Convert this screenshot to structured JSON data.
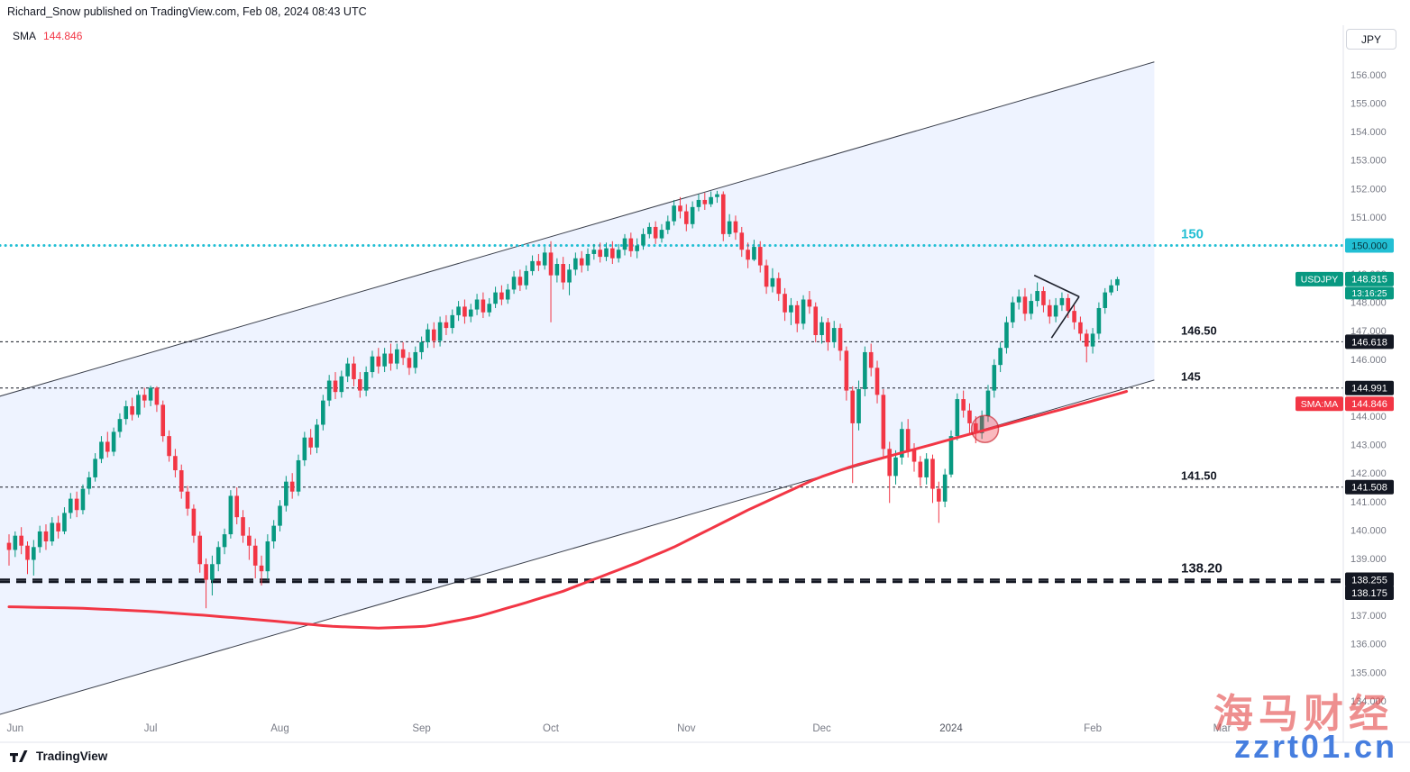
{
  "header": {
    "attribution": "Richard_Snow published on TradingView.com, Feb 08, 2024 08:43 UTC"
  },
  "legend": {
    "indicator": "SMA",
    "value": "144.846"
  },
  "axis": {
    "currency": "JPY",
    "tick_min": 134,
    "tick_max": 156,
    "tick_step": 1,
    "decimals": 3,
    "tick_color": "#787b86"
  },
  "footer": {
    "brand": "TradingView"
  },
  "watermark": {
    "line1": "海马财经",
    "line2": "zzrt01.cn"
  },
  "chart_data": {
    "type": "candlestick",
    "symbol": "USDJPY",
    "last_price": "148.815",
    "countdown": "13:16:25",
    "up_color": "#089981",
    "down_color": "#f23645",
    "sma_color": "#f23645",
    "ylim": [
      132.54,
      157.74
    ],
    "x_labels": [
      {
        "label": "Jun",
        "idx": 1
      },
      {
        "label": "Jul",
        "idx": 23
      },
      {
        "label": "Aug",
        "idx": 44
      },
      {
        "label": "Sep",
        "idx": 67
      },
      {
        "label": "Oct",
        "idx": 88
      },
      {
        "label": "Nov",
        "idx": 110
      },
      {
        "label": "Dec",
        "idx": 132
      },
      {
        "label": "2024",
        "idx": 153,
        "emphasis": true
      },
      {
        "label": "Feb",
        "idx": 176
      },
      {
        "label": "Mar",
        "idx": 197
      }
    ],
    "levels": [
      {
        "price": 150.0,
        "text": "150",
        "axis_label": "150.000",
        "color": "#22bfd4",
        "style": "dotted",
        "text_color": "#22bfd4",
        "label_bg": "#22bfd4",
        "label_fg": "#06323a",
        "text_size": 15
      },
      {
        "price": 146.618,
        "text": "146.50",
        "axis_label": "146.618",
        "color": "#131722",
        "style": "dash-fine",
        "text_color": "#131722",
        "label_bg": "#131722",
        "label_fg": "#ffffff",
        "text_size": 13
      },
      {
        "price": 144.991,
        "text": "145",
        "axis_label": "144.991",
        "color": "#131722",
        "style": "dash-fine",
        "text_color": "#131722",
        "label_bg": "#131722",
        "label_fg": "#ffffff",
        "text_size": 13
      },
      {
        "price": 141.508,
        "text": "141.50",
        "axis_label": "141.508",
        "color": "#131722",
        "style": "dash-fine",
        "text_color": "#131722",
        "label_bg": "#131722",
        "label_fg": "#ffffff",
        "text_size": 13
      },
      {
        "price": 138.255,
        "text": "138.20",
        "axis_label": "138.255",
        "color": "#131722",
        "style": "dash-heavy",
        "text_color": "#131722",
        "label_bg": "#131722",
        "label_fg": "#ffffff",
        "text_size": 15
      },
      {
        "price": 138.175,
        "text": "",
        "axis_label": "138.175",
        "color": "#131722",
        "style": "dash-heavy",
        "text_color": "#131722",
        "label_bg": "#131722",
        "label_fg": "#ffffff",
        "text_size": 13,
        "label_dy": 12
      }
    ],
    "series_labels": [
      {
        "name": "USDJPY",
        "value": "148.815",
        "price": 148.815,
        "bg": "#089981",
        "fg": "#ffffff",
        "sub": "13:16:25"
      },
      {
        "name": "SMA:MA",
        "value": "144.846",
        "price": 144.846,
        "bg": "#f23645",
        "fg": "#ffffff",
        "dy": 13
      }
    ],
    "channel": {
      "upper": [
        [
          -1.5,
          144.7
        ],
        [
          186,
          156.45
        ]
      ],
      "lower": [
        [
          -1.5,
          133.52
        ],
        [
          186,
          145.27
        ]
      ],
      "fill": "rgba(41,98,255,0.08)",
      "line_color": "#3a3f4b"
    },
    "circle_marker": {
      "idx": 158.5,
      "price": 143.55,
      "radius": 15
    },
    "pennant": [
      [
        [
          166.5,
          148.95
        ],
        [
          173.8,
          148.2
        ]
      ],
      [
        [
          169.3,
          146.75
        ],
        [
          173.8,
          148.2
        ]
      ]
    ],
    "sma_points": [
      [
        0,
        137.3
      ],
      [
        12,
        137.25
      ],
      [
        22,
        137.15
      ],
      [
        32,
        137.0
      ],
      [
        43,
        136.8
      ],
      [
        52,
        136.62
      ],
      [
        60,
        136.55
      ],
      [
        68,
        136.62
      ],
      [
        76,
        136.95
      ],
      [
        84,
        137.45
      ],
      [
        90,
        137.85
      ],
      [
        96,
        138.35
      ],
      [
        102,
        138.85
      ],
      [
        108,
        139.4
      ],
      [
        114,
        140.05
      ],
      [
        120,
        140.7
      ],
      [
        126,
        141.3
      ],
      [
        131,
        141.8
      ],
      [
        137,
        142.25
      ],
      [
        143,
        142.6
      ],
      [
        149,
        142.95
      ],
      [
        154,
        143.25
      ],
      [
        160,
        143.6
      ],
      [
        166,
        143.95
      ],
      [
        172,
        144.3
      ],
      [
        177,
        144.6
      ],
      [
        181.5,
        144.87
      ]
    ],
    "candles": [
      [
        139.55,
        139.85,
        138.75,
        139.3
      ],
      [
        139.3,
        139.95,
        139.05,
        139.8
      ],
      [
        139.8,
        140.1,
        139.15,
        139.45
      ],
      [
        139.45,
        139.6,
        138.45,
        138.95
      ],
      [
        138.95,
        139.65,
        138.4,
        139.4
      ],
      [
        139.4,
        140.15,
        139.2,
        139.95
      ],
      [
        139.95,
        140.2,
        139.3,
        139.6
      ],
      [
        139.6,
        140.45,
        139.45,
        140.25
      ],
      [
        140.25,
        140.5,
        139.7,
        139.95
      ],
      [
        139.95,
        140.8,
        139.85,
        140.6
      ],
      [
        140.6,
        141.3,
        140.4,
        141.1
      ],
      [
        141.1,
        141.35,
        140.45,
        140.7
      ],
      [
        140.7,
        141.6,
        140.55,
        141.45
      ],
      [
        141.45,
        142.05,
        141.25,
        141.85
      ],
      [
        141.85,
        142.7,
        141.7,
        142.5
      ],
      [
        142.5,
        143.3,
        142.35,
        143.1
      ],
      [
        143.1,
        143.45,
        142.55,
        142.75
      ],
      [
        142.75,
        143.6,
        142.6,
        143.45
      ],
      [
        143.45,
        144.1,
        143.25,
        143.9
      ],
      [
        143.9,
        144.55,
        143.7,
        144.35
      ],
      [
        144.35,
        144.65,
        143.85,
        144.05
      ],
      [
        144.05,
        144.9,
        143.95,
        144.75
      ],
      [
        144.75,
        145.0,
        144.3,
        144.55
      ],
      [
        144.55,
        145.07,
        144.35,
        145.0
      ],
      [
        145.0,
        145.05,
        144.15,
        144.4
      ],
      [
        144.4,
        144.55,
        143.1,
        143.3
      ],
      [
        143.3,
        143.5,
        142.4,
        142.6
      ],
      [
        142.6,
        142.85,
        141.85,
        142.1
      ],
      [
        142.1,
        142.3,
        141.1,
        141.35
      ],
      [
        141.35,
        141.55,
        140.5,
        140.75
      ],
      [
        140.75,
        140.9,
        139.55,
        139.8
      ],
      [
        139.8,
        139.95,
        138.5,
        138.8
      ],
      [
        138.8,
        139.0,
        137.25,
        138.25
      ],
      [
        138.25,
        139.1,
        137.7,
        138.8
      ],
      [
        138.8,
        139.6,
        138.55,
        139.4
      ],
      [
        139.4,
        140.05,
        139.15,
        139.85
      ],
      [
        139.85,
        141.4,
        139.7,
        141.2
      ],
      [
        141.2,
        141.5,
        140.2,
        140.45
      ],
      [
        140.45,
        140.7,
        139.55,
        139.8
      ],
      [
        139.8,
        140.1,
        138.95,
        139.45
      ],
      [
        139.45,
        139.7,
        138.3,
        138.75
      ],
      [
        138.75,
        139.1,
        138.05,
        138.55
      ],
      [
        138.55,
        139.85,
        138.25,
        139.6
      ],
      [
        139.6,
        140.35,
        139.35,
        140.15
      ],
      [
        140.15,
        141.05,
        139.95,
        140.85
      ],
      [
        140.85,
        141.9,
        140.65,
        141.7
      ],
      [
        141.7,
        142.0,
        141.1,
        141.35
      ],
      [
        141.35,
        142.65,
        141.2,
        142.45
      ],
      [
        142.45,
        143.45,
        142.25,
        143.25
      ],
      [
        143.25,
        143.55,
        142.65,
        142.9
      ],
      [
        142.9,
        143.9,
        142.7,
        143.7
      ],
      [
        143.7,
        144.75,
        143.5,
        144.55
      ],
      [
        144.55,
        145.45,
        144.35,
        145.25
      ],
      [
        145.25,
        145.55,
        144.6,
        144.85
      ],
      [
        144.85,
        145.6,
        144.65,
        145.4
      ],
      [
        145.4,
        146.05,
        145.2,
        145.85
      ],
      [
        145.85,
        146.1,
        145.05,
        145.3
      ],
      [
        145.3,
        145.55,
        144.65,
        144.9
      ],
      [
        144.9,
        145.75,
        144.7,
        145.55
      ],
      [
        145.55,
        146.3,
        145.35,
        146.1
      ],
      [
        146.1,
        146.4,
        145.5,
        145.75
      ],
      [
        145.75,
        146.4,
        145.55,
        146.2
      ],
      [
        146.2,
        146.55,
        145.6,
        145.85
      ],
      [
        145.85,
        146.55,
        145.65,
        146.35
      ],
      [
        146.35,
        146.6,
        145.8,
        146.05
      ],
      [
        146.05,
        146.25,
        145.45,
        145.7
      ],
      [
        145.7,
        146.45,
        145.5,
        146.25
      ],
      [
        146.25,
        146.8,
        146.0,
        146.6
      ],
      [
        146.6,
        147.25,
        146.4,
        147.05
      ],
      [
        147.05,
        147.3,
        146.4,
        146.65
      ],
      [
        146.65,
        147.5,
        146.45,
        147.3
      ],
      [
        147.3,
        147.55,
        146.85,
        147.1
      ],
      [
        147.1,
        147.75,
        146.9,
        147.55
      ],
      [
        147.55,
        148.05,
        147.35,
        147.85
      ],
      [
        147.85,
        148.1,
        147.25,
        147.5
      ],
      [
        147.5,
        147.95,
        147.3,
        147.75
      ],
      [
        147.75,
        148.3,
        147.55,
        148.1
      ],
      [
        148.1,
        148.35,
        147.45,
        147.65
      ],
      [
        147.65,
        148.15,
        147.5,
        147.95
      ],
      [
        147.95,
        148.55,
        147.8,
        148.35
      ],
      [
        148.35,
        148.6,
        147.9,
        148.1
      ],
      [
        148.1,
        148.65,
        147.95,
        148.45
      ],
      [
        148.45,
        149.1,
        148.3,
        148.9
      ],
      [
        148.9,
        149.15,
        148.4,
        148.6
      ],
      [
        148.6,
        149.3,
        148.45,
        149.1
      ],
      [
        149.1,
        149.65,
        148.95,
        149.45
      ],
      [
        149.45,
        149.7,
        149.1,
        149.3
      ],
      [
        149.3,
        149.95,
        149.15,
        149.75
      ],
      [
        149.75,
        150.15,
        147.3,
        148.95
      ],
      [
        148.95,
        149.55,
        148.7,
        149.35
      ],
      [
        149.35,
        149.6,
        148.45,
        148.7
      ],
      [
        148.7,
        149.35,
        148.25,
        149.15
      ],
      [
        149.15,
        149.75,
        148.95,
        149.55
      ],
      [
        149.55,
        149.8,
        149.05,
        149.3
      ],
      [
        149.3,
        149.9,
        149.1,
        149.7
      ],
      [
        149.7,
        150.05,
        149.5,
        149.85
      ],
      [
        149.85,
        150.1,
        149.4,
        149.6
      ],
      [
        149.6,
        150.1,
        149.45,
        149.9
      ],
      [
        149.9,
        150.15,
        149.35,
        149.55
      ],
      [
        149.55,
        150.05,
        149.4,
        149.85
      ],
      [
        149.85,
        150.4,
        149.65,
        150.25
      ],
      [
        150.25,
        150.45,
        149.6,
        149.8
      ],
      [
        149.8,
        150.25,
        149.55,
        150.0
      ],
      [
        150.0,
        150.6,
        149.85,
        150.4
      ],
      [
        150.4,
        150.8,
        150.25,
        150.65
      ],
      [
        150.65,
        150.85,
        150.05,
        150.25
      ],
      [
        150.25,
        150.75,
        150.1,
        150.55
      ],
      [
        150.55,
        151.05,
        150.4,
        150.85
      ],
      [
        150.85,
        151.6,
        150.7,
        151.4
      ],
      [
        151.4,
        151.7,
        150.95,
        151.2
      ],
      [
        151.2,
        151.45,
        150.5,
        150.75
      ],
      [
        150.75,
        151.55,
        150.6,
        151.35
      ],
      [
        151.35,
        151.8,
        151.2,
        151.6
      ],
      [
        151.6,
        151.85,
        151.25,
        151.45
      ],
      [
        151.45,
        151.9,
        151.35,
        151.7
      ],
      [
        151.7,
        151.92,
        151.5,
        151.8
      ],
      [
        151.8,
        151.9,
        150.15,
        150.4
      ],
      [
        150.4,
        151.1,
        150.3,
        150.85
      ],
      [
        150.85,
        151.05,
        150.2,
        150.45
      ],
      [
        150.45,
        150.65,
        149.6,
        149.85
      ],
      [
        149.85,
        150.1,
        149.2,
        149.5
      ],
      [
        149.5,
        150.2,
        149.45,
        149.95
      ],
      [
        149.95,
        150.15,
        149.05,
        149.3
      ],
      [
        149.3,
        149.5,
        148.3,
        148.55
      ],
      [
        148.55,
        149.2,
        148.35,
        148.85
      ],
      [
        148.85,
        149.05,
        148.05,
        148.3
      ],
      [
        148.3,
        148.5,
        147.35,
        147.65
      ],
      [
        147.65,
        148.15,
        147.2,
        147.9
      ],
      [
        147.9,
        148.05,
        146.95,
        147.25
      ],
      [
        147.25,
        148.25,
        147.05,
        148.1
      ],
      [
        148.1,
        148.4,
        147.6,
        147.85
      ],
      [
        147.85,
        148.0,
        146.6,
        146.85
      ],
      [
        146.85,
        147.5,
        146.55,
        147.3
      ],
      [
        147.3,
        147.45,
        146.3,
        146.6
      ],
      [
        146.6,
        147.35,
        146.4,
        147.1
      ],
      [
        147.1,
        147.25,
        145.95,
        146.3
      ],
      [
        146.3,
        146.45,
        144.55,
        144.9
      ],
      [
        144.9,
        145.05,
        141.65,
        143.75
      ],
      [
        143.75,
        145.25,
        143.5,
        144.95
      ],
      [
        144.95,
        146.45,
        144.7,
        146.25
      ],
      [
        146.25,
        146.55,
        145.4,
        145.7
      ],
      [
        145.7,
        145.95,
        144.45,
        144.75
      ],
      [
        144.75,
        144.95,
        142.5,
        142.85
      ],
      [
        142.85,
        143.1,
        140.95,
        141.9
      ],
      [
        141.9,
        142.8,
        141.6,
        142.55
      ],
      [
        142.55,
        143.8,
        142.3,
        143.55
      ],
      [
        143.55,
        143.9,
        142.55,
        142.8
      ],
      [
        142.8,
        143.05,
        142.05,
        142.4
      ],
      [
        142.4,
        142.6,
        141.55,
        141.85
      ],
      [
        141.85,
        142.7,
        141.6,
        142.5
      ],
      [
        142.5,
        142.65,
        140.95,
        141.45
      ],
      [
        141.45,
        141.7,
        140.25,
        141.0
      ],
      [
        141.0,
        142.15,
        140.8,
        141.95
      ],
      [
        141.95,
        143.5,
        141.85,
        143.3
      ],
      [
        143.3,
        144.8,
        143.15,
        144.6
      ],
      [
        144.6,
        144.9,
        143.95,
        144.2
      ],
      [
        144.2,
        144.45,
        143.4,
        143.75
      ],
      [
        143.75,
        144.0,
        143.05,
        143.4
      ],
      [
        143.4,
        144.2,
        143.2,
        144.0
      ],
      [
        144.0,
        145.1,
        143.8,
        144.9
      ],
      [
        144.9,
        146.0,
        144.65,
        145.8
      ],
      [
        145.8,
        146.6,
        145.55,
        146.4
      ],
      [
        146.4,
        147.5,
        146.2,
        147.3
      ],
      [
        147.3,
        148.2,
        147.1,
        148.0
      ],
      [
        148.0,
        148.45,
        147.75,
        148.2
      ],
      [
        148.2,
        148.5,
        147.35,
        147.6
      ],
      [
        147.6,
        148.3,
        147.4,
        148.05
      ],
      [
        148.05,
        148.7,
        147.85,
        148.4
      ],
      [
        148.4,
        148.55,
        147.65,
        147.9
      ],
      [
        147.9,
        148.1,
        147.25,
        147.5
      ],
      [
        147.5,
        148.15,
        147.3,
        147.9
      ],
      [
        147.9,
        148.35,
        147.7,
        148.15
      ],
      [
        148.15,
        148.3,
        147.45,
        147.7
      ],
      [
        147.7,
        147.9,
        147.05,
        147.3
      ],
      [
        147.3,
        147.5,
        146.65,
        146.9
      ],
      [
        146.9,
        147.05,
        145.89,
        146.45
      ],
      [
        146.45,
        147.1,
        146.2,
        146.9
      ],
      [
        146.9,
        148.0,
        146.7,
        147.8
      ],
      [
        147.8,
        148.5,
        147.6,
        148.35
      ],
      [
        148.35,
        148.8,
        148.25,
        148.6
      ],
      [
        148.6,
        148.9,
        148.4,
        148.815
      ]
    ]
  }
}
